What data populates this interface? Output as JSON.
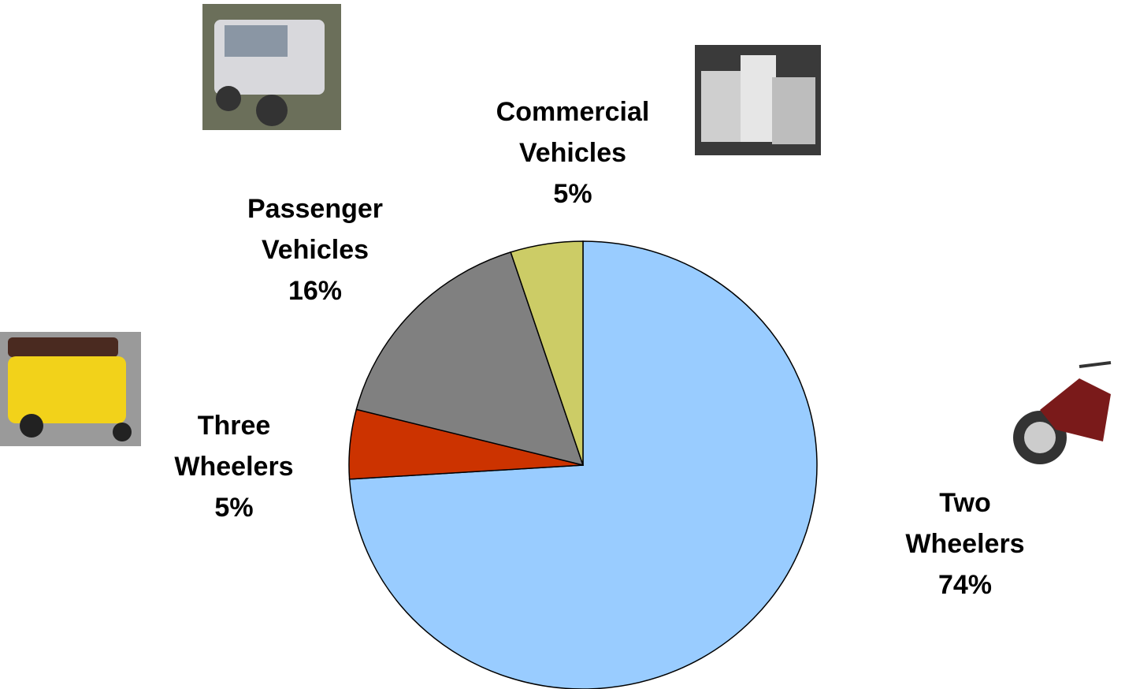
{
  "chart_data": {
    "type": "pie",
    "categories": [
      "Two Wheelers",
      "Three Wheelers",
      "Passenger Vehicles",
      "Commercial Vehicles"
    ],
    "values": [
      74,
      5,
      16,
      5
    ],
    "value_labels": [
      "74%",
      "5%",
      "16%",
      "5%"
    ],
    "colors": [
      "#99ccff",
      "#cc3300",
      "#808080",
      "#cccc66"
    ]
  }
}
